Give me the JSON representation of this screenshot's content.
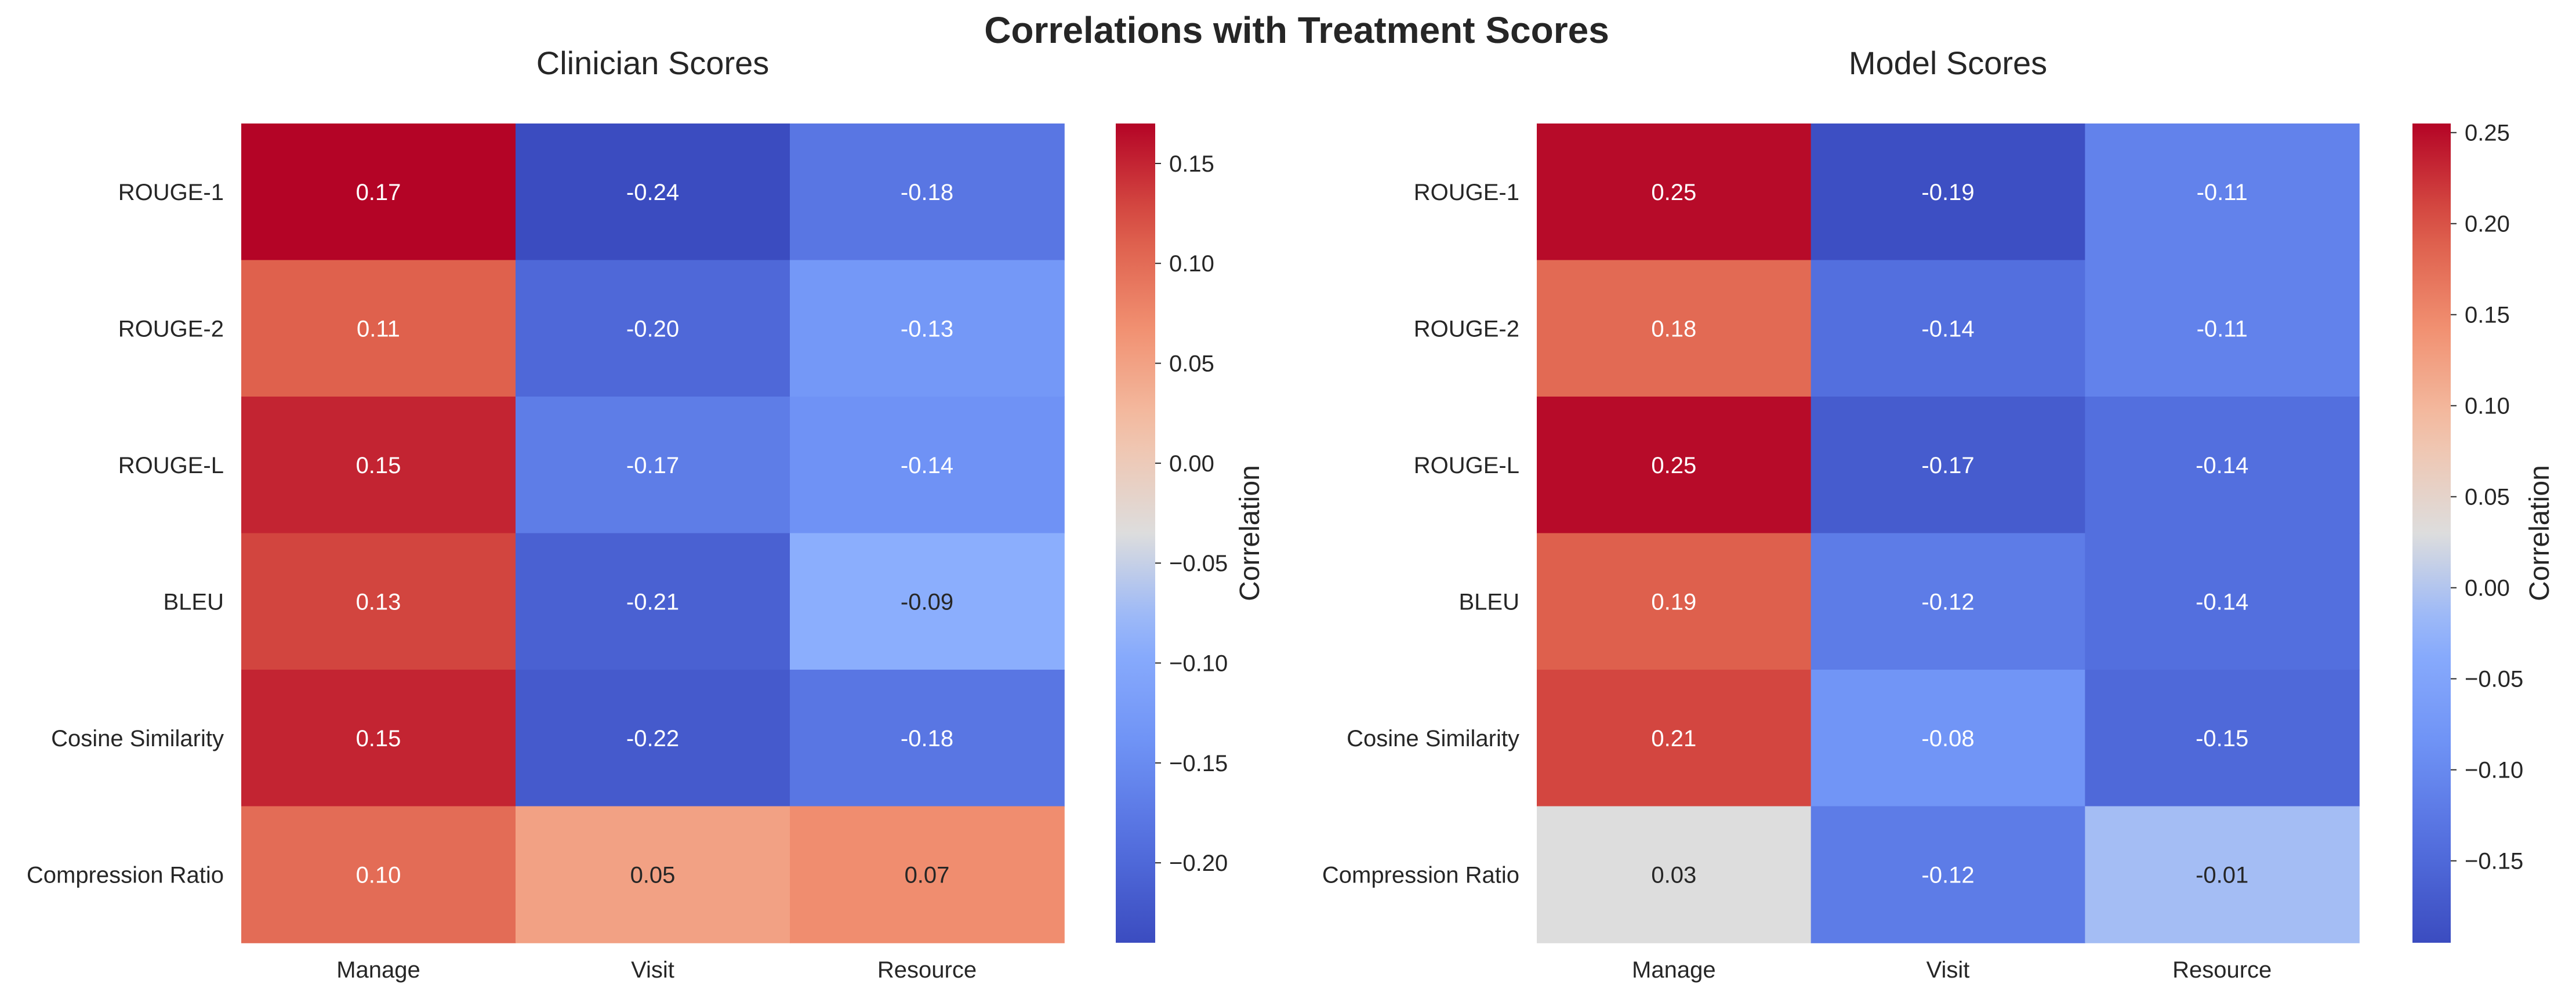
{
  "figure": {
    "title": "Correlations with Treatment Scores"
  },
  "chart_data": [
    {
      "type": "heatmap",
      "title": "Clinician Scores",
      "rows": [
        "ROUGE-1",
        "ROUGE-2",
        "ROUGE-L",
        "BLEU",
        "Cosine Similarity",
        "Compression Ratio"
      ],
      "columns": [
        "Manage",
        "Visit",
        "Resource"
      ],
      "values": [
        [
          0.17,
          -0.24,
          -0.18
        ],
        [
          0.11,
          -0.2,
          -0.13
        ],
        [
          0.15,
          -0.17,
          -0.14
        ],
        [
          0.13,
          -0.21,
          -0.09
        ],
        [
          0.15,
          -0.22,
          -0.18
        ],
        [
          0.1,
          0.05,
          0.07
        ]
      ],
      "value_labels": [
        [
          "0.17",
          "-0.24",
          "-0.18"
        ],
        [
          "0.11",
          "-0.20",
          "-0.13"
        ],
        [
          "0.15",
          "-0.17",
          "-0.14"
        ],
        [
          "0.13",
          "-0.21",
          "-0.09"
        ],
        [
          "0.15",
          "-0.22",
          "-0.18"
        ],
        [
          "0.10",
          "0.05",
          "0.07"
        ]
      ],
      "colormap": "coolwarm",
      "colorbar": {
        "label": "Correlation",
        "range": [
          -0.24,
          0.17
        ],
        "ticks": [
          0.15,
          0.1,
          0.05,
          0.0,
          -0.05,
          -0.1,
          -0.15,
          -0.2
        ],
        "tick_labels": [
          "0.15",
          "0.10",
          "0.05",
          "0.00",
          "−0.05",
          "−0.10",
          "−0.15",
          "−0.20"
        ]
      }
    },
    {
      "type": "heatmap",
      "title": "Model Scores",
      "rows": [
        "ROUGE-1",
        "ROUGE-2",
        "ROUGE-L",
        "BLEU",
        "Cosine Similarity",
        "Compression Ratio"
      ],
      "columns": [
        "Manage",
        "Visit",
        "Resource"
      ],
      "values": [
        [
          0.25,
          -0.19,
          -0.11
        ],
        [
          0.18,
          -0.14,
          -0.11
        ],
        [
          0.25,
          -0.17,
          -0.14
        ],
        [
          0.19,
          -0.12,
          -0.14
        ],
        [
          0.21,
          -0.08,
          -0.15
        ],
        [
          0.03,
          -0.12,
          -0.01
        ]
      ],
      "value_labels": [
        [
          "0.25",
          "-0.19",
          "-0.11"
        ],
        [
          "0.18",
          "-0.14",
          "-0.11"
        ],
        [
          "0.25",
          "-0.17",
          "-0.14"
        ],
        [
          "0.19",
          "-0.12",
          "-0.14"
        ],
        [
          "0.21",
          "-0.08",
          "-0.15"
        ],
        [
          "0.03",
          "-0.12",
          "-0.01"
        ]
      ],
      "colormap": "coolwarm",
      "colorbar": {
        "label": "Correlation",
        "range": [
          -0.195,
          0.255
        ],
        "ticks": [
          0.25,
          0.2,
          0.15,
          0.1,
          0.05,
          0.0,
          -0.05,
          -0.1,
          -0.15
        ],
        "tick_labels": [
          "0.25",
          "0.20",
          "0.15",
          "0.10",
          "0.05",
          "0.00",
          "−0.05",
          "−0.10",
          "−0.15"
        ]
      }
    }
  ]
}
